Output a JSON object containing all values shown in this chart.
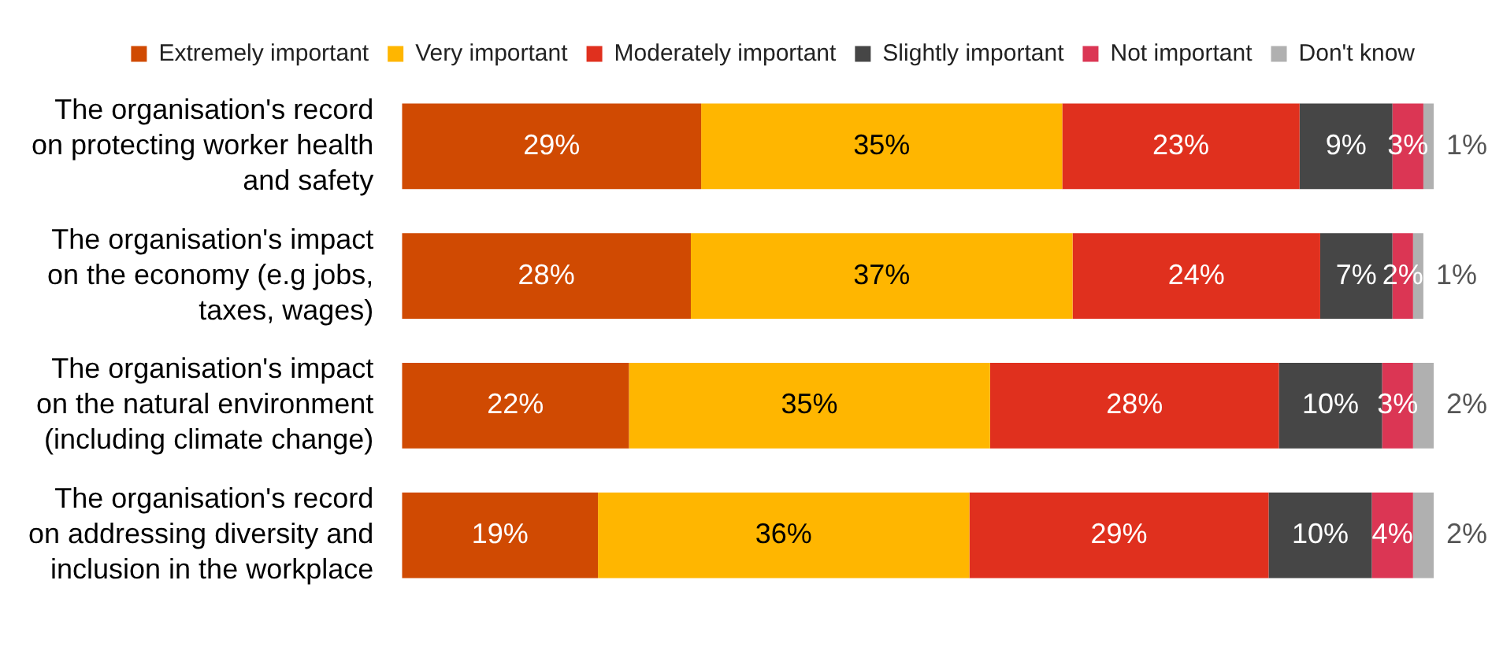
{
  "chart_data": {
    "type": "bar",
    "orientation": "horizontal",
    "stacked": true,
    "legend": "top",
    "tick_labels": "y",
    "categories": [
      "The organisation's record on protecting worker health and safety",
      "The organisation's impact on the economy (e.g jobs, taxes, wages)",
      "The organisation's impact on the natural environment (including climate change)",
      "The organisation's record on addressing diversity and inclusion in the workplace"
    ],
    "series": [
      {
        "name": "Extremely important",
        "color": "#d04a02",
        "values": [
          29,
          28,
          22,
          19
        ],
        "value_labels": [
          "29%",
          "28%",
          "22%",
          "19%"
        ]
      },
      {
        "name": "Very important",
        "color": "#ffb600",
        "values": [
          35,
          37,
          35,
          36
        ],
        "value_labels": [
          "35%",
          "37%",
          "35%",
          "36%"
        ]
      },
      {
        "name": "Moderately important",
        "color": "#e0301e",
        "values": [
          23,
          24,
          28,
          29
        ],
        "value_labels": [
          "23%",
          "24%",
          "28%",
          "29%"
        ]
      },
      {
        "name": "Slightly important",
        "color": "#464646",
        "values": [
          9,
          7,
          10,
          10
        ],
        "value_labels": [
          "9%",
          "7%",
          "10%",
          "10%"
        ]
      },
      {
        "name": "Not important",
        "color": "#db3654",
        "values": [
          3,
          2,
          3,
          4
        ],
        "value_labels": [
          "3%",
          "2%",
          "3%",
          "4%"
        ]
      },
      {
        "name": "Don't know",
        "color": "#b0b0b0",
        "values": [
          1,
          1,
          2,
          2
        ],
        "value_labels": [
          "1%",
          "1%",
          "2%",
          "2%"
        ]
      }
    ]
  }
}
